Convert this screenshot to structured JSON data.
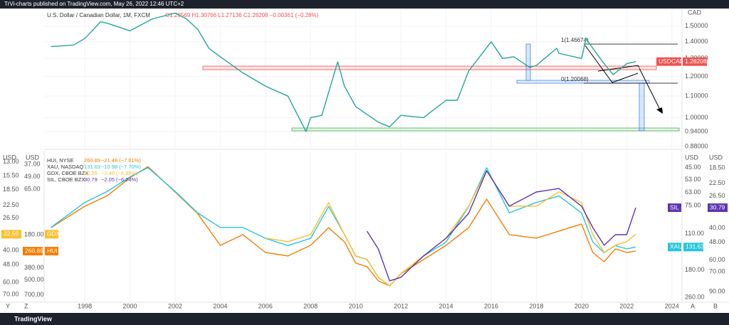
{
  "header": "TrVi-charts published on TradingView.com, May 26, 2022 12:46 UTC+2",
  "footer": "TradingView",
  "left_buttons": [
    "Y",
    "Z"
  ],
  "right_buttons": [
    "A",
    "B"
  ],
  "chart_data": [
    {
      "type": "line",
      "title": "U.S. Dollar / Canadian Dollar, 1M, FXCM",
      "ohlc": "O1.28569 H1.30766 L1.27136 C1.28208 −0.00361 (−0.28%)",
      "symbol": "USDCAD",
      "unit": "CAD",
      "log": true,
      "color": "#26a69a",
      "tag_color": "#ef5350",
      "annotations": [
        "1(1.46674)",
        "0(1.20068)"
      ],
      "x": [
        1996.5,
        1997.5,
        1998,
        1998.7,
        1999,
        2000,
        2001,
        2002,
        2002.5,
        2003,
        2003.5,
        2004,
        2005,
        2006,
        2007,
        2007.8,
        2008,
        2008.5,
        2009.2,
        2009.5,
        2010,
        2011,
        2011.5,
        2012,
        2013,
        2014,
        2014.5,
        2015,
        2016,
        2016.5,
        2017,
        2017.7,
        2018,
        2018.9,
        2019,
        2020,
        2020.2,
        2020.5,
        2021,
        2021.4,
        2022,
        2022.4
      ],
      "values": [
        1.37,
        1.38,
        1.42,
        1.53,
        1.52,
        1.47,
        1.55,
        1.59,
        1.55,
        1.48,
        1.36,
        1.31,
        1.22,
        1.15,
        1.1,
        0.94,
        1.0,
        1.01,
        1.28,
        1.15,
        1.05,
        0.98,
        0.96,
        1.01,
        1.0,
        1.08,
        1.08,
        1.23,
        1.4,
        1.3,
        1.31,
        1.25,
        1.26,
        1.36,
        1.33,
        1.3,
        1.42,
        1.36,
        1.27,
        1.21,
        1.27,
        1.28208
      ],
      "xlim": [
        1996.2,
        2024.45
      ],
      "ylim": [
        0.877,
        1.597
      ],
      "yticks": [
        {
          "value": 1.5,
          "label": "1.50000"
        },
        {
          "value": 1.4,
          "label": "1.40000"
        },
        {
          "value": 1.3,
          "label": "1.30000"
        },
        {
          "value": 1.2,
          "label": "1.20000"
        },
        {
          "value": 1.1,
          "label": "1.10000"
        },
        {
          "value": 1.0,
          "label": "1.00000"
        },
        {
          "value": 0.94,
          "label": "0.94000"
        },
        {
          "value": 0.88,
          "label": "0.88000"
        }
      ]
    },
    {
      "type": "line",
      "log": true,
      "inverted": true,
      "unit": "USD",
      "xlim": [
        1996.2,
        2024.45
      ],
      "xticks": [
        1998,
        2000,
        2002,
        2004,
        2006,
        2008,
        2010,
        2012,
        2014,
        2016,
        2018,
        2020,
        2022,
        2024
      ],
      "x": [
        1996.5,
        1998,
        1999,
        2000,
        2000.8,
        2002,
        2003,
        2004,
        2005,
        2006,
        2007,
        2008,
        2008.8,
        2009.5,
        2010,
        2010.5,
        2011,
        2011.5,
        2012,
        2013,
        2014,
        2015,
        2015.8,
        2016.8,
        2018,
        2019,
        2020,
        2020.5,
        2021,
        2021.5,
        2022,
        2022.4
      ],
      "series": [
        {
          "name": "HUI, NYSE",
          "tag": "HUI",
          "change": "−21.48 (−7.61%)",
          "color": "#f57c00",
          "ylim": [
            30,
            786
          ],
          "yticks": [
            {
              "value": 37,
              "label": "37.00"
            },
            {
              "value": 49,
              "label": "49.00"
            },
            {
              "value": 65,
              "label": "65.00"
            },
            {
              "value": 180,
              "label": "180.00"
            },
            {
              "value": 380,
              "label": "380.00"
            },
            {
              "value": 500,
              "label": "500.00"
            },
            {
              "value": 700,
              "label": "700.00"
            }
          ],
          "values": [
            154,
            95,
            75,
            50,
            39,
            69,
            112,
            229,
            180,
            269,
            291,
            229,
            154,
            212,
            342,
            370,
            510,
            571,
            435,
            316,
            229,
            154,
            81,
            180,
            195,
            166,
            142,
            269,
            331,
            248,
            269,
            260.89
          ]
        },
        {
          "name": "XAU, NASDAQ",
          "tag": "XAU",
          "change": "−10.98 (−7.70%)",
          "color": "#26c6da",
          "ylim": [
            37.9,
            270
          ],
          "yticks": [
            {
              "value": 45,
              "label": "45.00"
            },
            {
              "value": 53,
              "label": "53.00"
            },
            {
              "value": 63,
              "label": "63.00"
            },
            {
              "value": 75,
              "label": "75.00"
            },
            {
              "value": 110,
              "label": "110.00"
            },
            {
              "value": 180,
              "label": "180.00"
            },
            {
              "value": 260,
              "label": "260.00"
            }
          ],
          "values": [
            101,
            72,
            62,
            51,
            45,
            62,
            83,
            101,
            101,
            117,
            129,
            117,
            76,
            111,
            149,
            156,
            198,
            223,
            189,
            149,
            123,
            76,
            45,
            83,
            72,
            66,
            83,
            123,
            142,
            129,
            135,
            131.63
          ]
        },
        {
          "name": "GDX, CBOE BZX",
          "tag": "GDX",
          "change": "−2.40 (−6.86%)",
          "color": "#fbc02d",
          "ylim": [
            11.9,
            75.3
          ],
          "yticks": [
            {
              "value": 13,
              "label": "13.00"
            },
            {
              "value": 15.5,
              "label": "15.50"
            },
            {
              "value": 18.5,
              "label": "18.50"
            },
            {
              "value": 22.5,
              "label": "22.50"
            },
            {
              "value": 26.5,
              "label": "26.50"
            },
            {
              "value": 40,
              "label": "40.00"
            },
            {
              "value": 48,
              "label": "48.00"
            },
            {
              "value": 60,
              "label": "60.00"
            },
            {
              "value": 70,
              "label": "70.00"
            }
          ],
          "values": [
            null,
            null,
            null,
            null,
            null,
            null,
            null,
            null,
            null,
            34.2,
            35.8,
            32.7,
            21.8,
            32.7,
            42.9,
            44.9,
            56.3,
            62.8,
            53.8,
            42.9,
            34.2,
            22.8,
            14.5,
            22.8,
            22.8,
            19.0,
            21.8,
            32.7,
            41.0,
            37.5,
            35.8,
            32.59
          ]
        },
        {
          "name": "SIL, CBOE BZX",
          "tag": "SIL",
          "change": "−2.05 (−6.24%)",
          "color": "#5e35b1",
          "ylim": [
            15.7,
            100.4
          ],
          "yticks": [
            {
              "value": 18.5,
              "label": "18.50"
            },
            {
              "value": 22.5,
              "label": "22.50"
            },
            {
              "value": 26.5,
              "label": "26.50"
            },
            {
              "value": 40,
              "label": "40.00"
            },
            {
              "value": 48,
              "label": "48.00"
            },
            {
              "value": 60,
              "label": "60.00"
            },
            {
              "value": 70,
              "label": "70.00"
            },
            {
              "value": 90,
              "label": "90.00"
            }
          ],
          "values": [
            null,
            null,
            null,
            null,
            null,
            null,
            null,
            null,
            null,
            null,
            null,
            null,
            null,
            null,
            null,
            41.6,
            52.2,
            78.5,
            75.0,
            57.1,
            45.5,
            33.1,
            19.2,
            30.2,
            25.2,
            24.1,
            30.2,
            39.7,
            49.8,
            43.5,
            43.5,
            30.79
          ]
        }
      ]
    }
  ]
}
